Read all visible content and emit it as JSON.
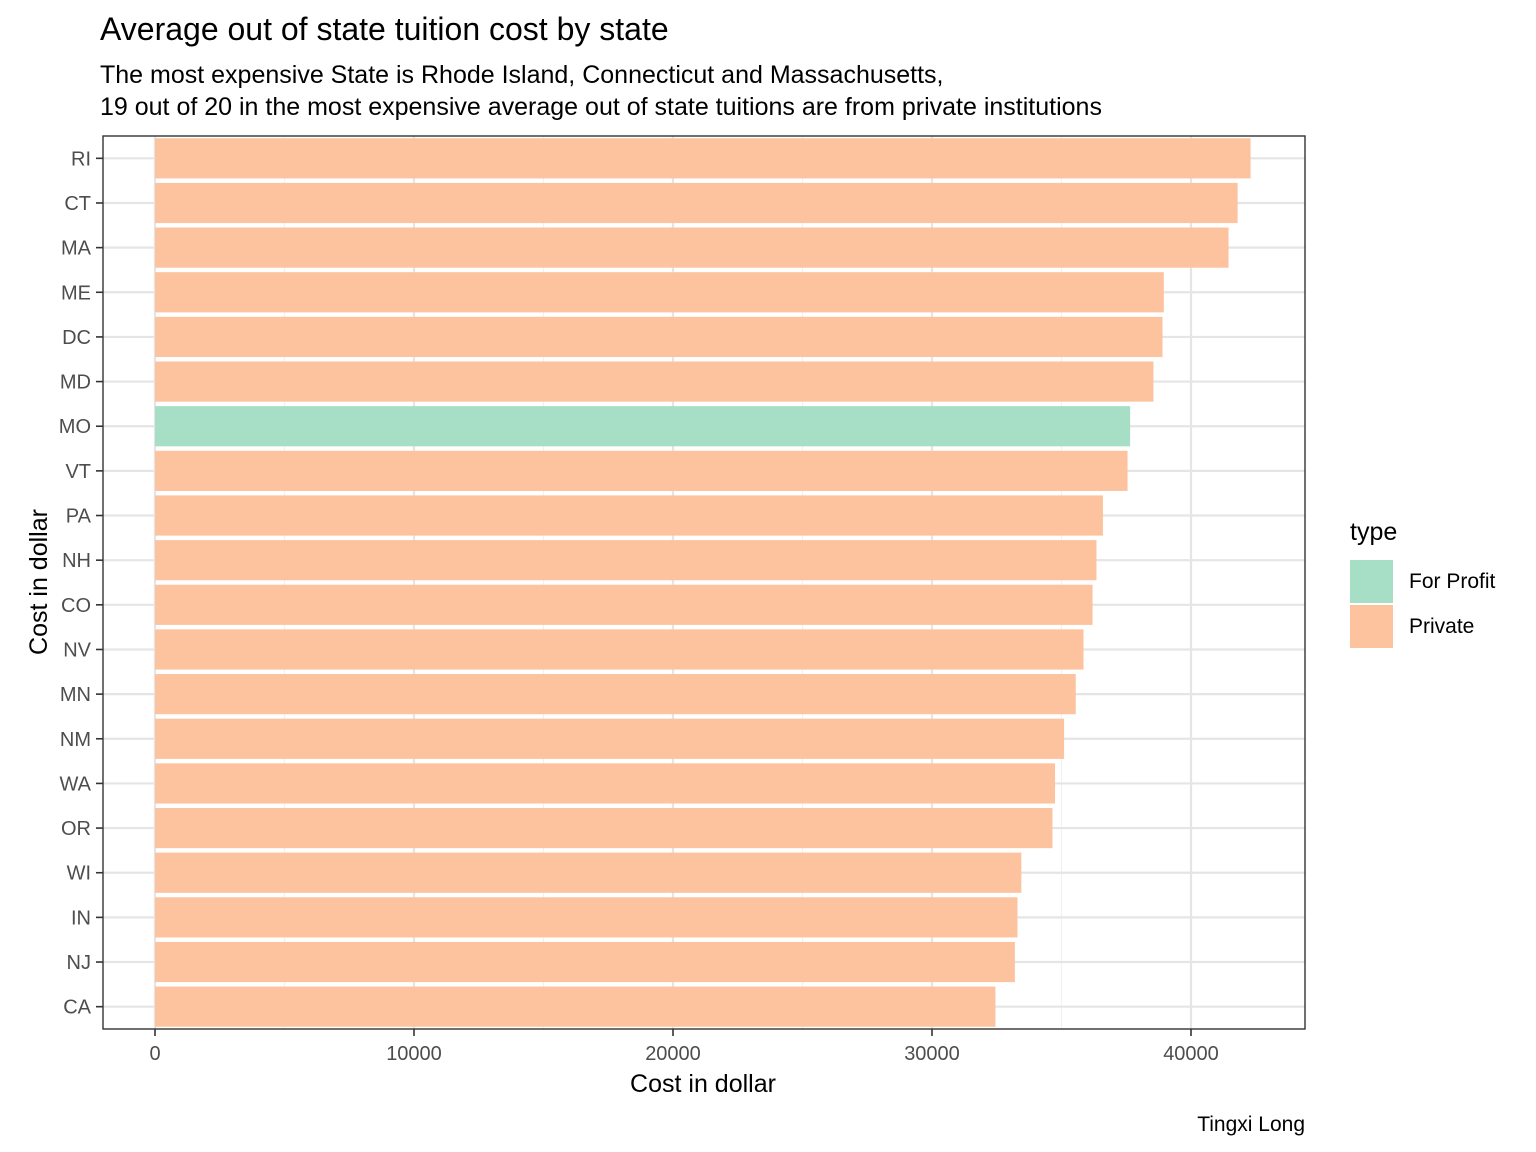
{
  "chart_data": {
    "type": "bar",
    "orientation": "horizontal",
    "title": "Average out of state tuition cost by state",
    "subtitle": [
      "The most expensive State is Rhode Island, Connecticut and Massachusetts,",
      "19 out of 20 in the most expensive average out of state tuitions are from private institutions"
    ],
    "xlabel": "Cost in dollar",
    "ylabel": "Cost in dollar",
    "caption": "Tingxi Long",
    "xlim": [
      0,
      44000
    ],
    "x_ticks": [
      0,
      10000,
      20000,
      30000,
      40000
    ],
    "grid": true,
    "legend": {
      "title": "type",
      "placement": "right",
      "entries": [
        {
          "label": "For Profit",
          "color": "#a6dfc5"
        },
        {
          "label": "Private",
          "color": "#fcc39e"
        }
      ]
    },
    "categories": [
      "RI",
      "CT",
      "MA",
      "ME",
      "DC",
      "MD",
      "MO",
      "VT",
      "PA",
      "NH",
      "CO",
      "NV",
      "MN",
      "NM",
      "WA",
      "OR",
      "WI",
      "IN",
      "NJ",
      "CA"
    ],
    "values": [
      42300,
      41800,
      41450,
      38950,
      38900,
      38550,
      37650,
      37550,
      36600,
      36350,
      36200,
      35850,
      35550,
      35100,
      34750,
      34650,
      33450,
      33300,
      33200,
      32450
    ],
    "types": [
      "Private",
      "Private",
      "Private",
      "Private",
      "Private",
      "Private",
      "For Profit",
      "Private",
      "Private",
      "Private",
      "Private",
      "Private",
      "Private",
      "Private",
      "Private",
      "Private",
      "Private",
      "Private",
      "Private",
      "Private"
    ]
  },
  "colors": {
    "panel_border": "#333333",
    "grid_major": "#e5e5e5",
    "grid_minor": "#f1f1f1",
    "tick_text": "#4d4d4d",
    "tick_mark": "#333333"
  }
}
